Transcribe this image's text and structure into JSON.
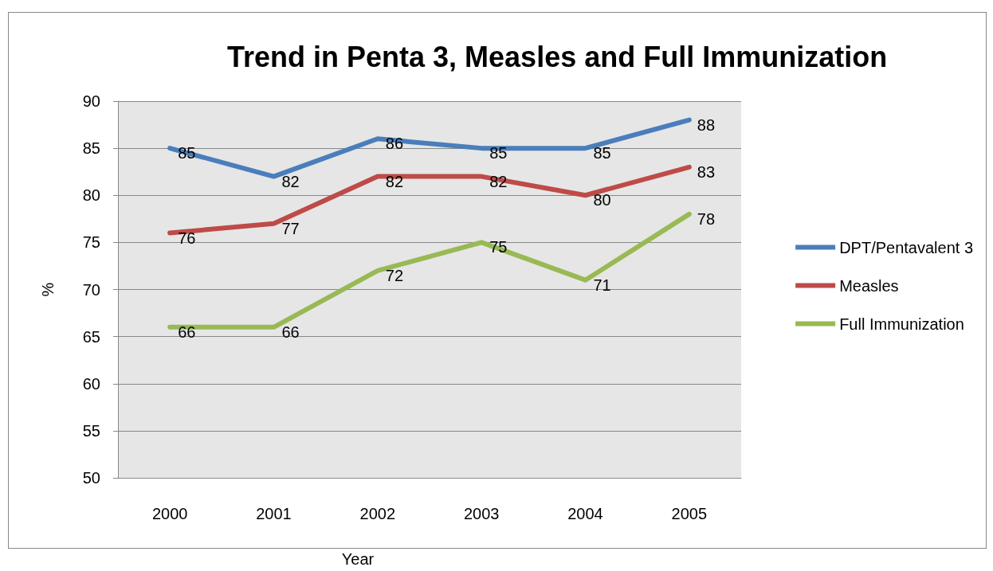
{
  "chart_data": {
    "type": "line",
    "title": "Trend in Penta 3, Measles and Full Immunization",
    "xlabel": "Year",
    "ylabel": "%",
    "categories": [
      "2000",
      "2001",
      "2002",
      "2003",
      "2004",
      "2005"
    ],
    "series": [
      {
        "name": "DPT/Pentavalent 3",
        "color": "#4a7ebb",
        "values": [
          85,
          82,
          86,
          85,
          85,
          88
        ]
      },
      {
        "name": "Measles",
        "color": "#be4b48",
        "values": [
          76,
          77,
          82,
          82,
          80,
          83
        ]
      },
      {
        "name": "Full Immunization",
        "color": "#98b954",
        "values": [
          66,
          66,
          72,
          75,
          71,
          78
        ]
      }
    ],
    "ylim": [
      50,
      90
    ],
    "yticks": [
      50,
      55,
      60,
      65,
      70,
      75,
      80,
      85,
      90
    ],
    "grid": "y",
    "legend": "right",
    "marker": "none",
    "line_style": "solid",
    "data_labels": true
  }
}
